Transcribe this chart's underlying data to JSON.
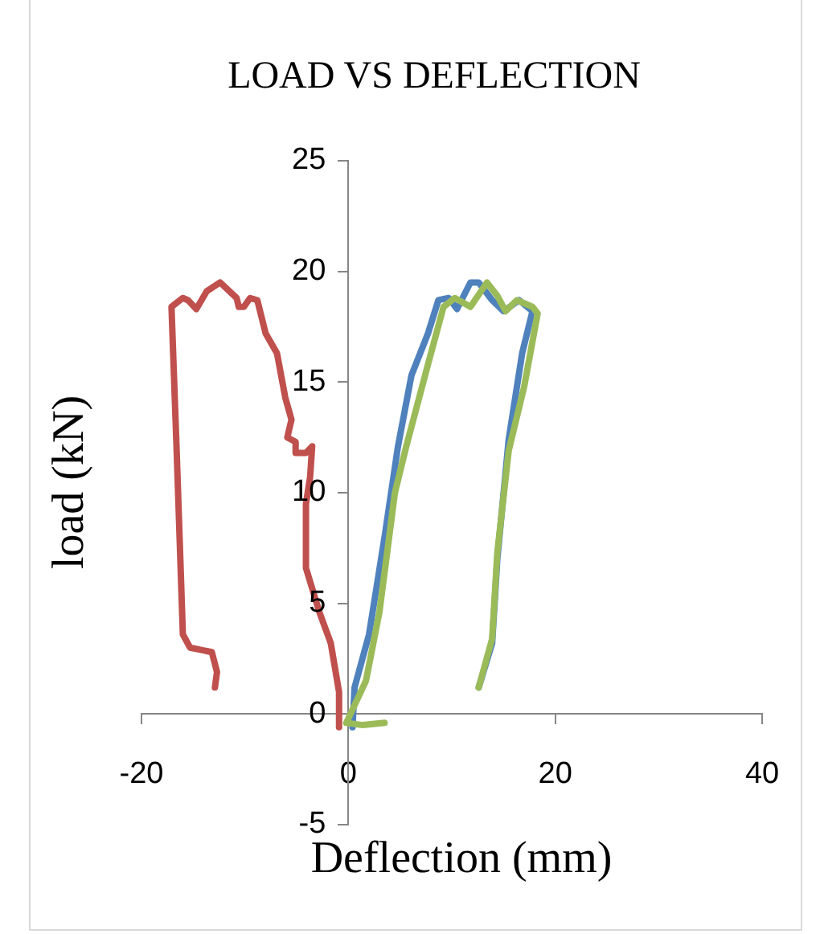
{
  "chart_data": {
    "type": "line",
    "title": "LOAD VS DEFLECTION",
    "xlabel": "Deflection (mm)",
    "ylabel": "load (kN)",
    "xlim": [
      -20,
      40
    ],
    "xticks": [
      -20,
      0,
      20,
      40
    ],
    "ylim": [
      -5,
      25
    ],
    "yticks": [
      -5,
      0,
      5,
      10,
      15,
      20,
      25
    ],
    "grid": false,
    "legend": false,
    "marker": "none",
    "line_style": "solid",
    "series": [
      {
        "color": "#c0504d",
        "x": [
          -0.9,
          -0.9,
          -1.7,
          -2.8,
          -4.1,
          -4.1,
          -3.7,
          -3.5,
          -4.1,
          -5.1,
          -5.1,
          -5.9,
          -5.5,
          -6.1,
          -6.9,
          -8.0,
          -8.8,
          -9.5,
          -10.1,
          -10.6,
          -10.8,
          -12.4,
          -13.7,
          -14.7,
          -15.5,
          -16.0,
          -17.1,
          -16.6,
          -16.0,
          -15.3,
          -13.2,
          -12.7,
          -12.9
        ],
        "values": [
          -0.6,
          1.0,
          3.2,
          4.6,
          6.6,
          9.5,
          10.7,
          12.1,
          11.8,
          11.8,
          12.3,
          12.5,
          13.3,
          14.3,
          16.3,
          17.2,
          18.7,
          18.8,
          18.4,
          18.4,
          18.8,
          19.5,
          19.1,
          18.3,
          18.7,
          18.8,
          18.4,
          11.9,
          3.6,
          3.0,
          2.8,
          1.9,
          1.2
        ]
      },
      {
        "color": "#4f81bd",
        "x": [
          0.4,
          0.6,
          2.0,
          3.5,
          4.8,
          6.1,
          7.7,
          8.7,
          9.7,
          10.5,
          11.8,
          12.6,
          13.9,
          15.0,
          16.5,
          17.8,
          16.8,
          15.5,
          14.4,
          13.9,
          12.6
        ],
        "values": [
          -0.6,
          1.2,
          3.6,
          8.0,
          12.1,
          15.3,
          17.2,
          18.7,
          18.8,
          18.3,
          19.5,
          19.5,
          18.7,
          18.2,
          18.7,
          18.2,
          16.3,
          12.4,
          7.0,
          3.2,
          1.2
        ]
      },
      {
        "color": "#9bbb59",
        "x": [
          3.5,
          1.4,
          -0.2,
          1.7,
          3.0,
          4.5,
          5.6,
          7.7,
          9.2,
          10.3,
          11.8,
          13.4,
          14.4,
          15.2,
          16.3,
          17.8,
          18.3,
          17.0,
          15.5,
          14.4,
          13.9,
          12.6
        ],
        "values": [
          -0.4,
          -0.5,
          -0.4,
          1.5,
          4.6,
          10.0,
          12.1,
          15.8,
          18.4,
          18.8,
          18.4,
          19.5,
          18.9,
          18.2,
          18.7,
          18.4,
          18.1,
          14.8,
          11.9,
          7.3,
          3.4,
          1.2
        ]
      }
    ]
  }
}
